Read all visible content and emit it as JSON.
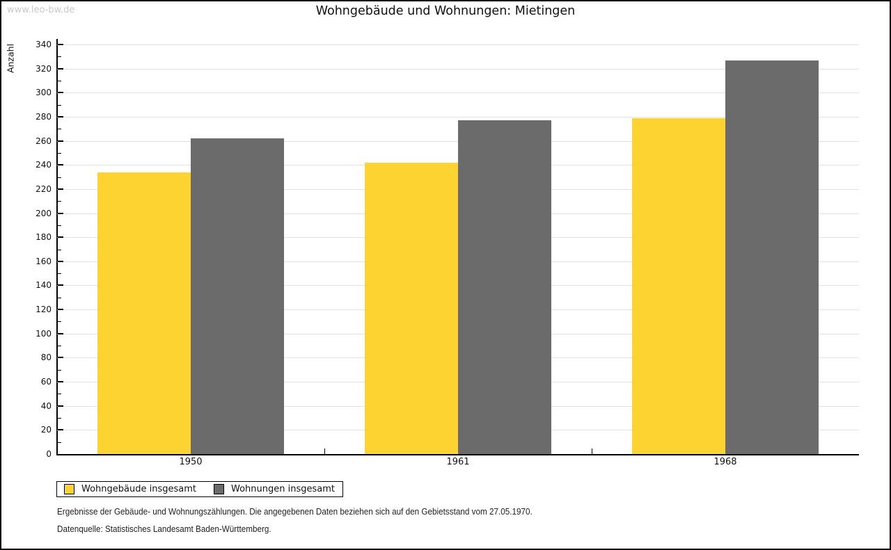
{
  "page": {
    "watermark": "www.leo-bw.de",
    "title": "Wohngebäude und Wohnungen: Mietingen",
    "footnote_line1": "Ergebnisse der Gebäude- und Wohnungszählungen. Die angegebenen Daten beziehen sich auf den Gebietsstand vom 27.05.1970.",
    "footnote_line2": "Datenquelle: Statistisches Landesamt Baden-Württemberg."
  },
  "chart_data": {
    "type": "bar",
    "title": "Wohngebäude und Wohnungen: Mietingen",
    "categories": [
      "1950",
      "1961",
      "1968"
    ],
    "series": [
      {
        "name": "Wohngebäude insgesamt",
        "color": "#FCD330",
        "values": [
          234,
          242,
          279
        ]
      },
      {
        "name": "Wohnungen insgesamt",
        "color": "#6B6B6B",
        "values": [
          262,
          277,
          327
        ]
      }
    ],
    "xlabel": "",
    "ylabel": "Anzahl",
    "ylim": [
      0,
      340
    ],
    "y_major_step": 20,
    "y_minor_step": 10,
    "grid": true,
    "gridline_color": "#e2e2e2",
    "legend_position": "bottom-left"
  }
}
